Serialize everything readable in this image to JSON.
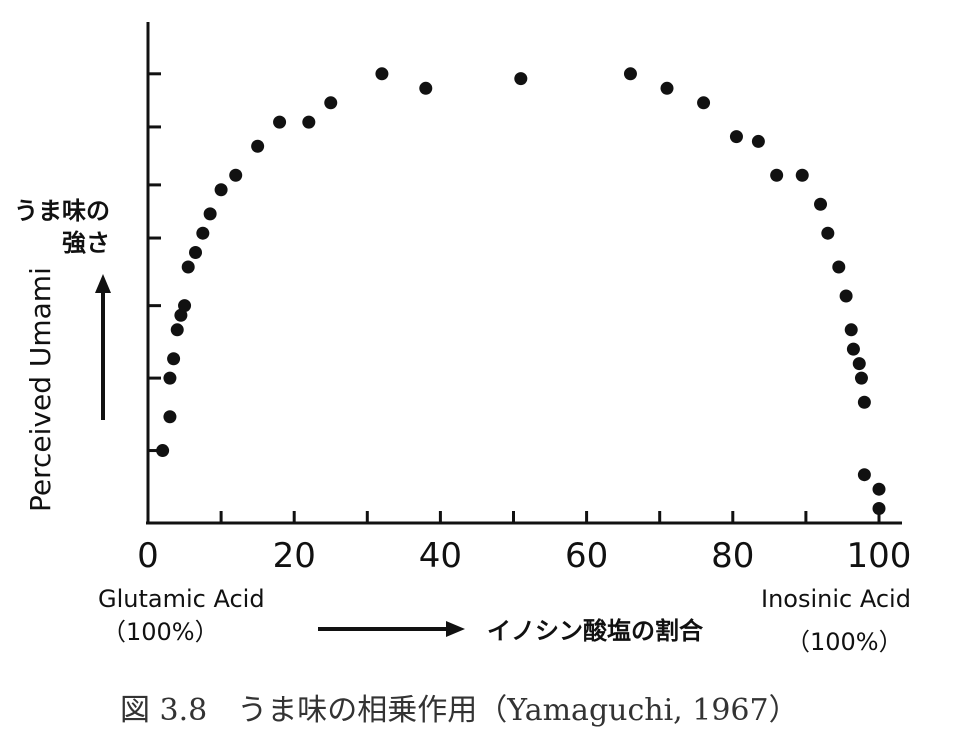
{
  "chart_data": {
    "type": "scatter",
    "xlim": [
      0,
      100
    ],
    "x_ticks": [
      0,
      20,
      40,
      60,
      80,
      100
    ],
    "x_tick_labels": [
      "0",
      "20",
      "40",
      "60",
      "80",
      "100"
    ],
    "y_scale_labels": "none",
    "grid": false,
    "marker_color": "#111111",
    "axis_color": "#111111",
    "xlabel": "イノシン酸塩の割合",
    "ylabel": "Perceived Umami",
    "ylabel_ja_line1": "うま味の",
    "ylabel_ja_line2": "強さ",
    "x_left_label": "Glutamic Acid",
    "x_left_pct": "（100%）",
    "x_right_label": "Inosinic Acid",
    "x_right_pct": "（100%）",
    "caption": "図 3.8　うま味の相乗作用（Yamaguchi, 1967）",
    "points": [
      {
        "x": 2,
        "y": 1.5
      },
      {
        "x": 3,
        "y": 2.2
      },
      {
        "x": 3,
        "y": 3.0
      },
      {
        "x": 3.5,
        "y": 3.4
      },
      {
        "x": 4,
        "y": 4.0
      },
      {
        "x": 4.5,
        "y": 4.3
      },
      {
        "x": 5,
        "y": 4.5
      },
      {
        "x": 5.5,
        "y": 5.3
      },
      {
        "x": 6.5,
        "y": 5.6
      },
      {
        "x": 7.5,
        "y": 6.0
      },
      {
        "x": 8.5,
        "y": 6.4
      },
      {
        "x": 10,
        "y": 6.9
      },
      {
        "x": 12,
        "y": 7.2
      },
      {
        "x": 15,
        "y": 7.8
      },
      {
        "x": 18,
        "y": 8.3
      },
      {
        "x": 22,
        "y": 8.3
      },
      {
        "x": 25,
        "y": 8.7
      },
      {
        "x": 32,
        "y": 9.3
      },
      {
        "x": 38,
        "y": 9.0
      },
      {
        "x": 51,
        "y": 9.2
      },
      {
        "x": 66,
        "y": 9.3
      },
      {
        "x": 71,
        "y": 9.0
      },
      {
        "x": 76,
        "y": 8.7
      },
      {
        "x": 80.5,
        "y": 8.0
      },
      {
        "x": 83.5,
        "y": 7.9
      },
      {
        "x": 86,
        "y": 7.2
      },
      {
        "x": 89.5,
        "y": 7.2
      },
      {
        "x": 92,
        "y": 6.6
      },
      {
        "x": 93,
        "y": 6.0
      },
      {
        "x": 94.5,
        "y": 5.3
      },
      {
        "x": 95.5,
        "y": 4.7
      },
      {
        "x": 96.2,
        "y": 4.0
      },
      {
        "x": 96.5,
        "y": 3.6
      },
      {
        "x": 97.3,
        "y": 3.3
      },
      {
        "x": 97.6,
        "y": 3.0
      },
      {
        "x": 98,
        "y": 2.5
      },
      {
        "x": 98,
        "y": 1.0
      },
      {
        "x": 100,
        "y": 0.7
      },
      {
        "x": 100,
        "y": 0.3
      }
    ]
  }
}
